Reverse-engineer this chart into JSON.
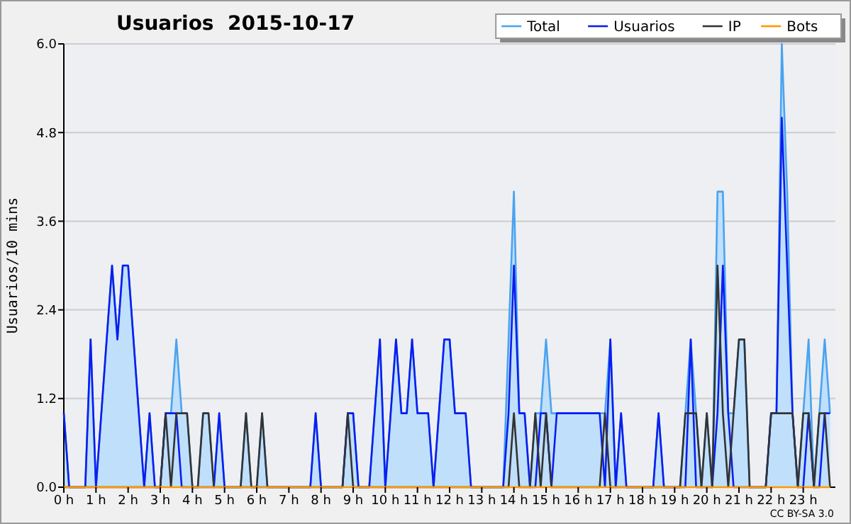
{
  "chart_data": {
    "type": "line",
    "title": "Usuarios  2015-10-17",
    "ylabel": "Usuarios/10 mins",
    "annotations": [
      "CC BY-SA 3.0"
    ],
    "x": [
      0,
      0.167,
      0.333,
      0.5,
      0.667,
      0.833,
      1,
      1.167,
      1.333,
      1.5,
      1.667,
      1.833,
      2,
      2.167,
      2.333,
      2.5,
      2.667,
      2.833,
      3,
      3.167,
      3.333,
      3.5,
      3.667,
      3.833,
      4,
      4.167,
      4.333,
      4.5,
      4.667,
      4.833,
      5,
      5.167,
      5.333,
      5.5,
      5.667,
      5.833,
      6,
      6.167,
      6.333,
      6.5,
      6.667,
      6.833,
      7,
      7.167,
      7.333,
      7.5,
      7.667,
      7.833,
      8,
      8.167,
      8.333,
      8.5,
      8.667,
      8.833,
      9,
      9.167,
      9.333,
      9.5,
      9.667,
      9.833,
      10,
      10.167,
      10.333,
      10.5,
      10.667,
      10.833,
      11,
      11.167,
      11.333,
      11.5,
      11.667,
      11.833,
      12,
      12.167,
      12.333,
      12.5,
      12.667,
      12.833,
      13,
      13.167,
      13.333,
      13.5,
      13.667,
      13.833,
      14,
      14.167,
      14.333,
      14.5,
      14.667,
      14.833,
      15,
      15.167,
      15.333,
      15.5,
      15.667,
      15.833,
      16,
      16.167,
      16.333,
      16.5,
      16.667,
      16.833,
      17,
      17.167,
      17.333,
      17.5,
      17.667,
      17.833,
      18,
      18.167,
      18.333,
      18.5,
      18.667,
      18.833,
      19,
      19.167,
      19.333,
      19.5,
      19.667,
      19.833,
      20,
      20.167,
      20.333,
      20.5,
      20.667,
      20.833,
      21,
      21.167,
      21.333,
      21.5,
      21.667,
      21.833,
      22,
      22.167,
      22.333,
      22.5,
      22.667,
      22.833,
      23,
      23.167,
      23.333,
      23.5,
      23.667,
      23.833
    ],
    "xlim": [
      0,
      24
    ],
    "xticks": [
      {
        "value": 0,
        "label": "0 h"
      },
      {
        "value": 1,
        "label": "1 h"
      },
      {
        "value": 2,
        "label": "2 h"
      },
      {
        "value": 3,
        "label": "3 h"
      },
      {
        "value": 4,
        "label": "4 h"
      },
      {
        "value": 5,
        "label": "5 h"
      },
      {
        "value": 6,
        "label": "6 h"
      },
      {
        "value": 7,
        "label": "7 h"
      },
      {
        "value": 8,
        "label": "8 h"
      },
      {
        "value": 9,
        "label": "9 h"
      },
      {
        "value": 10,
        "label": "10 h"
      },
      {
        "value": 11,
        "label": "11 h"
      },
      {
        "value": 12,
        "label": "12 h"
      },
      {
        "value": 13,
        "label": "13 h"
      },
      {
        "value": 14,
        "label": "14 h"
      },
      {
        "value": 15,
        "label": "15 h"
      },
      {
        "value": 16,
        "label": "16 h"
      },
      {
        "value": 17,
        "label": "17 h"
      },
      {
        "value": 18,
        "label": "18 h"
      },
      {
        "value": 19,
        "label": "19 h"
      },
      {
        "value": 20,
        "label": "20 h"
      },
      {
        "value": 21,
        "label": "21 h"
      },
      {
        "value": 22,
        "label": "22 h"
      },
      {
        "value": 23,
        "label": "23 h"
      }
    ],
    "ylim": [
      0,
      6
    ],
    "yticks": [
      {
        "value": 0,
        "label": "0.0"
      },
      {
        "value": 1.2,
        "label": "1.2"
      },
      {
        "value": 2.4,
        "label": "2.4"
      },
      {
        "value": 3.6,
        "label": "3.6"
      },
      {
        "value": 4.8,
        "label": "4.8"
      },
      {
        "value": 6,
        "label": "6.0"
      }
    ],
    "grid": "y",
    "legend": "top right",
    "marker": "none",
    "series": [
      {
        "name": "Total",
        "type": "area",
        "color": "#4aa3f0",
        "values": [
          1,
          0,
          0,
          0,
          0,
          2,
          0,
          1,
          2,
          3,
          2,
          3,
          3,
          2,
          1,
          0,
          1,
          0,
          0,
          1,
          1,
          2,
          1,
          1,
          0,
          0,
          1,
          1,
          0,
          1,
          0,
          0,
          0,
          0,
          1,
          0,
          0,
          1,
          0,
          0,
          0,
          0,
          0,
          0,
          0,
          0,
          0,
          1,
          0,
          0,
          0,
          0,
          0,
          1,
          1,
          0,
          0,
          0,
          1,
          2,
          0,
          1,
          2,
          1,
          1,
          2,
          1,
          1,
          1,
          0,
          1,
          2,
          2,
          1,
          1,
          1,
          0,
          0,
          0,
          0,
          0,
          0,
          0,
          2,
          4,
          1,
          1,
          0,
          1,
          1,
          2,
          1,
          1,
          1,
          1,
          1,
          1,
          1,
          1,
          1,
          1,
          1,
          2,
          0,
          1,
          0,
          0,
          0,
          0,
          0,
          0,
          1,
          0,
          0,
          0,
          0,
          1,
          2,
          1,
          0,
          1,
          0,
          4,
          4,
          1,
          1,
          2,
          2,
          0,
          0,
          0,
          0,
          1,
          1,
          6,
          4,
          1,
          0,
          1,
          2,
          0,
          1,
          2,
          1
        ]
      },
      {
        "name": "Usuarios",
        "type": "line",
        "color": "#0a1ef0",
        "values": [
          1,
          0,
          0,
          0,
          0,
          2,
          0,
          1,
          2,
          3,
          2,
          3,
          3,
          2,
          1,
          0,
          1,
          0,
          0,
          1,
          1,
          1,
          0,
          0,
          0,
          0,
          0,
          0,
          0,
          1,
          0,
          0,
          0,
          0,
          0,
          0,
          0,
          0,
          0,
          0,
          0,
          0,
          0,
          0,
          0,
          0,
          0,
          1,
          0,
          0,
          0,
          0,
          0,
          1,
          1,
          0,
          0,
          0,
          1,
          2,
          0,
          1,
          2,
          1,
          1,
          2,
          1,
          1,
          1,
          0,
          1,
          2,
          2,
          1,
          1,
          1,
          0,
          0,
          0,
          0,
          0,
          0,
          0,
          1,
          3,
          1,
          1,
          0,
          0,
          1,
          1,
          0,
          1,
          1,
          1,
          1,
          1,
          1,
          1,
          1,
          1,
          0,
          2,
          0,
          1,
          0,
          0,
          0,
          0,
          0,
          0,
          1,
          0,
          0,
          0,
          0,
          0,
          2,
          0,
          0,
          0,
          0,
          1,
          3,
          1,
          0,
          0,
          0,
          0,
          0,
          0,
          0,
          1,
          1,
          5,
          3,
          1,
          0,
          0,
          1,
          0,
          0,
          1,
          1
        ]
      },
      {
        "name": "IP",
        "type": "line",
        "color": "#333333",
        "values": [
          0,
          0,
          0,
          0,
          0,
          0,
          0,
          0,
          0,
          0,
          0,
          0,
          0,
          0,
          0,
          0,
          0,
          0,
          0,
          1,
          0,
          1,
          1,
          1,
          0,
          0,
          1,
          1,
          0,
          0,
          0,
          0,
          0,
          0,
          1,
          0,
          0,
          1,
          0,
          0,
          0,
          0,
          0,
          0,
          0,
          0,
          0,
          0,
          0,
          0,
          0,
          0,
          0,
          1,
          0,
          0,
          0,
          0,
          0,
          0,
          0,
          0,
          0,
          0,
          0,
          0,
          0,
          0,
          0,
          0,
          0,
          0,
          0,
          0,
          0,
          0,
          0,
          0,
          0,
          0,
          0,
          0,
          0,
          0,
          1,
          0,
          0,
          0,
          1,
          0,
          1,
          0,
          0,
          0,
          0,
          0,
          0,
          0,
          0,
          0,
          0,
          1,
          0,
          0,
          0,
          0,
          0,
          0,
          0,
          0,
          0,
          0,
          0,
          0,
          0,
          0,
          1,
          1,
          1,
          0,
          1,
          0,
          3,
          1,
          0,
          1,
          2,
          2,
          0,
          0,
          0,
          0,
          1,
          1,
          1,
          1,
          1,
          0,
          1,
          1,
          0,
          1,
          1,
          0
        ]
      },
      {
        "name": "Bots",
        "type": "line",
        "color": "#ff9900",
        "values": [
          0,
          0,
          0,
          0,
          0,
          0,
          0,
          0,
          0,
          0,
          0,
          0,
          0,
          0,
          0,
          0,
          0,
          0,
          0,
          0,
          0,
          0,
          0,
          0,
          0,
          0,
          0,
          0,
          0,
          0,
          0,
          0,
          0,
          0,
          0,
          0,
          0,
          0,
          0,
          0,
          0,
          0,
          0,
          0,
          0,
          0,
          0,
          0,
          0,
          0,
          0,
          0,
          0,
          0,
          0,
          0,
          0,
          0,
          0,
          0,
          0,
          0,
          0,
          0,
          0,
          0,
          0,
          0,
          0,
          0,
          0,
          0,
          0,
          0,
          0,
          0,
          0,
          0,
          0,
          0,
          0,
          0,
          0,
          0,
          0,
          0,
          0,
          0,
          0,
          0,
          0,
          0,
          0,
          0,
          0,
          0,
          0,
          0,
          0,
          0,
          0,
          0,
          0,
          0,
          0,
          0,
          0,
          0,
          0,
          0,
          0,
          0,
          0,
          0,
          0,
          0,
          0,
          0,
          0,
          0,
          0,
          0,
          0,
          0,
          0,
          0,
          0,
          0,
          0,
          0,
          0,
          0,
          0,
          0,
          0,
          0,
          0,
          0,
          0,
          0,
          0,
          0,
          0,
          0
        ]
      }
    ]
  }
}
